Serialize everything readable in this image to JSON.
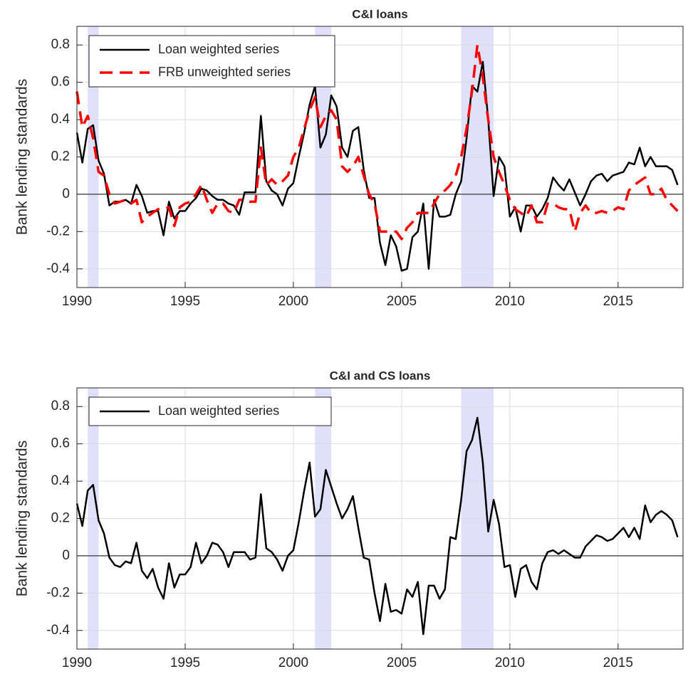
{
  "chart_data": [
    {
      "type": "line",
      "title": "C&I loans",
      "ylabel": "Bank lending standards",
      "x": [
        1990,
        1990.25,
        1990.5,
        1990.75,
        1991,
        1991.25,
        1991.5,
        1991.75,
        1992,
        1992.25,
        1992.5,
        1992.75,
        1993,
        1993.25,
        1993.5,
        1993.75,
        1994,
        1994.25,
        1994.5,
        1994.75,
        1995,
        1995.25,
        1995.5,
        1995.75,
        1996,
        1996.25,
        1996.5,
        1996.75,
        1997,
        1997.25,
        1997.5,
        1997.75,
        1998,
        1998.25,
        1998.5,
        1998.75,
        1999,
        1999.25,
        1999.5,
        1999.75,
        2000,
        2000.25,
        2000.5,
        2000.75,
        2001,
        2001.25,
        2001.5,
        2001.75,
        2002,
        2002.25,
        2002.5,
        2002.75,
        2003,
        2003.25,
        2003.5,
        2003.75,
        2004,
        2004.25,
        2004.5,
        2004.75,
        2005,
        2005.25,
        2005.5,
        2005.75,
        2006,
        2006.25,
        2006.5,
        2006.75,
        2007,
        2007.25,
        2007.5,
        2007.75,
        2008,
        2008.25,
        2008.5,
        2008.75,
        2009,
        2009.25,
        2009.5,
        2009.75,
        2010,
        2010.25,
        2010.5,
        2010.75,
        2011,
        2011.25,
        2011.5,
        2011.75,
        2012,
        2012.25,
        2012.5,
        2012.75,
        2013,
        2013.25,
        2013.5,
        2013.75,
        2014,
        2014.25,
        2014.5,
        2014.75,
        2015,
        2015.25,
        2015.5,
        2015.75,
        2016,
        2016.25,
        2016.5,
        2016.75,
        2017,
        2017.25,
        2017.5,
        2017.75
      ],
      "series": [
        {
          "name": "Loan weighted series",
          "color": "#000000",
          "dash": false,
          "values": [
            0.33,
            0.17,
            0.35,
            0.37,
            0.18,
            0.11,
            -0.06,
            -0.04,
            -0.04,
            -0.03,
            -0.05,
            0.05,
            -0.01,
            -0.1,
            -0.09,
            -0.09,
            -0.22,
            -0.04,
            -0.13,
            -0.09,
            -0.09,
            -0.05,
            -0.02,
            0.03,
            0.02,
            -0.01,
            -0.03,
            -0.03,
            -0.05,
            -0.06,
            -0.11,
            0.01,
            0.01,
            0.01,
            0.42,
            0.07,
            0.02,
            0.0,
            -0.06,
            0.03,
            0.06,
            0.2,
            0.33,
            0.48,
            0.58,
            0.25,
            0.32,
            0.53,
            0.47,
            0.25,
            0.2,
            0.34,
            0.36,
            0.13,
            -0.02,
            -0.02,
            -0.26,
            -0.38,
            -0.22,
            -0.28,
            -0.41,
            -0.4,
            -0.23,
            -0.2,
            -0.05,
            -0.4,
            -0.03,
            -0.12,
            -0.12,
            -0.11,
            0.0,
            0.07,
            0.3,
            0.58,
            0.55,
            0.71,
            0.4,
            -0.01,
            0.2,
            0.15,
            -0.12,
            -0.07,
            -0.2,
            -0.06,
            -0.06,
            -0.12,
            -0.08,
            -0.02,
            0.09,
            0.05,
            0.02,
            0.08,
            0.01,
            -0.06,
            0.0,
            0.07,
            0.1,
            0.11,
            0.07,
            0.1,
            0.11,
            0.12,
            0.17,
            0.16,
            0.25,
            0.15,
            0.2,
            0.15,
            0.15,
            0.15,
            0.13,
            0.05
          ]
        },
        {
          "name": "FRB unweighted series",
          "color": "#ff0000",
          "dash": true,
          "values": [
            0.55,
            0.36,
            0.42,
            0.3,
            0.12,
            0.1,
            0.0,
            -0.05,
            -0.04,
            -0.03,
            -0.05,
            -0.03,
            -0.15,
            -0.12,
            -0.1,
            -0.08,
            -0.08,
            -0.07,
            -0.17,
            -0.07,
            -0.05,
            -0.04,
            0.0,
            0.05,
            -0.03,
            -0.1,
            -0.05,
            -0.05,
            -0.09,
            -0.1,
            -0.03,
            -0.03,
            -0.04,
            -0.04,
            0.25,
            0.05,
            0.08,
            0.05,
            0.07,
            0.1,
            0.2,
            0.25,
            0.35,
            0.45,
            0.52,
            0.36,
            0.42,
            0.45,
            0.4,
            0.15,
            0.12,
            0.15,
            0.2,
            0.1,
            0.0,
            -0.05,
            -0.2,
            -0.2,
            -0.2,
            -0.2,
            -0.24,
            -0.18,
            -0.15,
            -0.1,
            -0.1,
            -0.1,
            -0.05,
            0.0,
            0.02,
            0.05,
            0.1,
            0.2,
            0.35,
            0.55,
            0.8,
            0.63,
            0.4,
            0.2,
            0.12,
            0.05,
            -0.03,
            -0.08,
            -0.1,
            -0.12,
            -0.06,
            -0.15,
            -0.15,
            -0.05,
            -0.05,
            -0.07,
            -0.08,
            -0.08,
            -0.2,
            -0.1,
            -0.06,
            -0.1,
            -0.1,
            -0.09,
            -0.1,
            -0.09,
            -0.07,
            -0.08,
            0.02,
            0.05,
            0.07,
            0.09,
            0.0,
            0.0,
            0.03,
            -0.03,
            -0.06,
            -0.09
          ]
        }
      ],
      "shaded_spans": [
        [
          1990.5,
          1991
        ],
        [
          2001,
          2001.75
        ],
        [
          2007.75,
          2009.25
        ]
      ],
      "shade_color": "#e0e0fb",
      "xlim": [
        1990,
        2018
      ],
      "xticks": [
        1990,
        1995,
        2000,
        2005,
        2010,
        2015
      ],
      "ylim": [
        -0.5,
        0.9
      ],
      "yticks": [
        -0.4,
        -0.2,
        0,
        0.2,
        0.4,
        0.6,
        0.8
      ],
      "grid": true,
      "legend": "northwest"
    },
    {
      "type": "line",
      "title": "C&I and CS loans",
      "ylabel": "Bank lending standards",
      "x": [
        1990,
        1990.25,
        1990.5,
        1990.75,
        1991,
        1991.25,
        1991.5,
        1991.75,
        1992,
        1992.25,
        1992.5,
        1992.75,
        1993,
        1993.25,
        1993.5,
        1993.75,
        1994,
        1994.25,
        1994.5,
        1994.75,
        1995,
        1995.25,
        1995.5,
        1995.75,
        1996,
        1996.25,
        1996.5,
        1996.75,
        1997,
        1997.25,
        1997.5,
        1997.75,
        1998,
        1998.25,
        1998.5,
        1998.75,
        1999,
        1999.25,
        1999.5,
        1999.75,
        2000,
        2000.25,
        2000.5,
        2000.75,
        2001,
        2001.25,
        2001.5,
        2001.75,
        2002,
        2002.25,
        2002.5,
        2002.75,
        2003,
        2003.25,
        2003.5,
        2003.75,
        2004,
        2004.25,
        2004.5,
        2004.75,
        2005,
        2005.25,
        2005.5,
        2005.75,
        2006,
        2006.25,
        2006.5,
        2006.75,
        2007,
        2007.25,
        2007.5,
        2007.75,
        2008,
        2008.25,
        2008.5,
        2008.75,
        2009,
        2009.25,
        2009.5,
        2009.75,
        2010,
        2010.25,
        2010.5,
        2010.75,
        2011,
        2011.25,
        2011.5,
        2011.75,
        2012,
        2012.25,
        2012.5,
        2012.75,
        2013,
        2013.25,
        2013.5,
        2013.75,
        2014,
        2014.25,
        2014.5,
        2014.75,
        2015,
        2015.25,
        2015.5,
        2015.75,
        2016,
        2016.25,
        2016.5,
        2016.75,
        2017,
        2017.25,
        2017.5,
        2017.75
      ],
      "series": [
        {
          "name": "Loan weighted series",
          "color": "#000000",
          "dash": false,
          "values": [
            0.28,
            0.16,
            0.35,
            0.38,
            0.19,
            0.12,
            -0.01,
            -0.05,
            -0.06,
            -0.03,
            -0.04,
            0.07,
            -0.08,
            -0.12,
            -0.07,
            -0.17,
            -0.23,
            -0.04,
            -0.17,
            -0.1,
            -0.1,
            -0.06,
            0.07,
            -0.04,
            0.0,
            0.07,
            0.06,
            0.02,
            -0.06,
            0.02,
            0.02,
            0.02,
            -0.02,
            -0.01,
            0.33,
            0.04,
            0.02,
            -0.02,
            -0.08,
            0.0,
            0.03,
            0.18,
            0.35,
            0.5,
            0.21,
            0.25,
            0.46,
            0.37,
            0.28,
            0.2,
            0.25,
            0.32,
            0.15,
            -0.01,
            -0.02,
            -0.2,
            -0.35,
            -0.15,
            -0.3,
            -0.29,
            -0.31,
            -0.18,
            -0.22,
            -0.14,
            -0.42,
            -0.16,
            -0.16,
            -0.23,
            -0.18,
            0.1,
            0.09,
            0.3,
            0.56,
            0.62,
            0.74,
            0.5,
            0.13,
            0.3,
            0.17,
            -0.06,
            -0.05,
            -0.22,
            -0.07,
            -0.05,
            -0.14,
            -0.18,
            -0.04,
            0.02,
            0.03,
            0.01,
            0.03,
            0.01,
            -0.01,
            -0.01,
            0.05,
            0.08,
            0.11,
            0.1,
            0.08,
            0.09,
            0.12,
            0.15,
            0.1,
            0.15,
            0.09,
            0.27,
            0.18,
            0.22,
            0.24,
            0.22,
            0.19,
            0.1
          ]
        }
      ],
      "shaded_spans": [
        [
          1990.5,
          1991
        ],
        [
          2001,
          2001.75
        ],
        [
          2007.75,
          2009.25
        ]
      ],
      "shade_color": "#e0e0fb",
      "xlim": [
        1990,
        2018
      ],
      "xticks": [
        1990,
        1995,
        2000,
        2005,
        2010,
        2015
      ],
      "ylim": [
        -0.5,
        0.9
      ],
      "yticks": [
        -0.4,
        -0.2,
        0,
        0.2,
        0.4,
        0.6,
        0.8
      ],
      "grid": true,
      "legend": "northwest"
    }
  ]
}
